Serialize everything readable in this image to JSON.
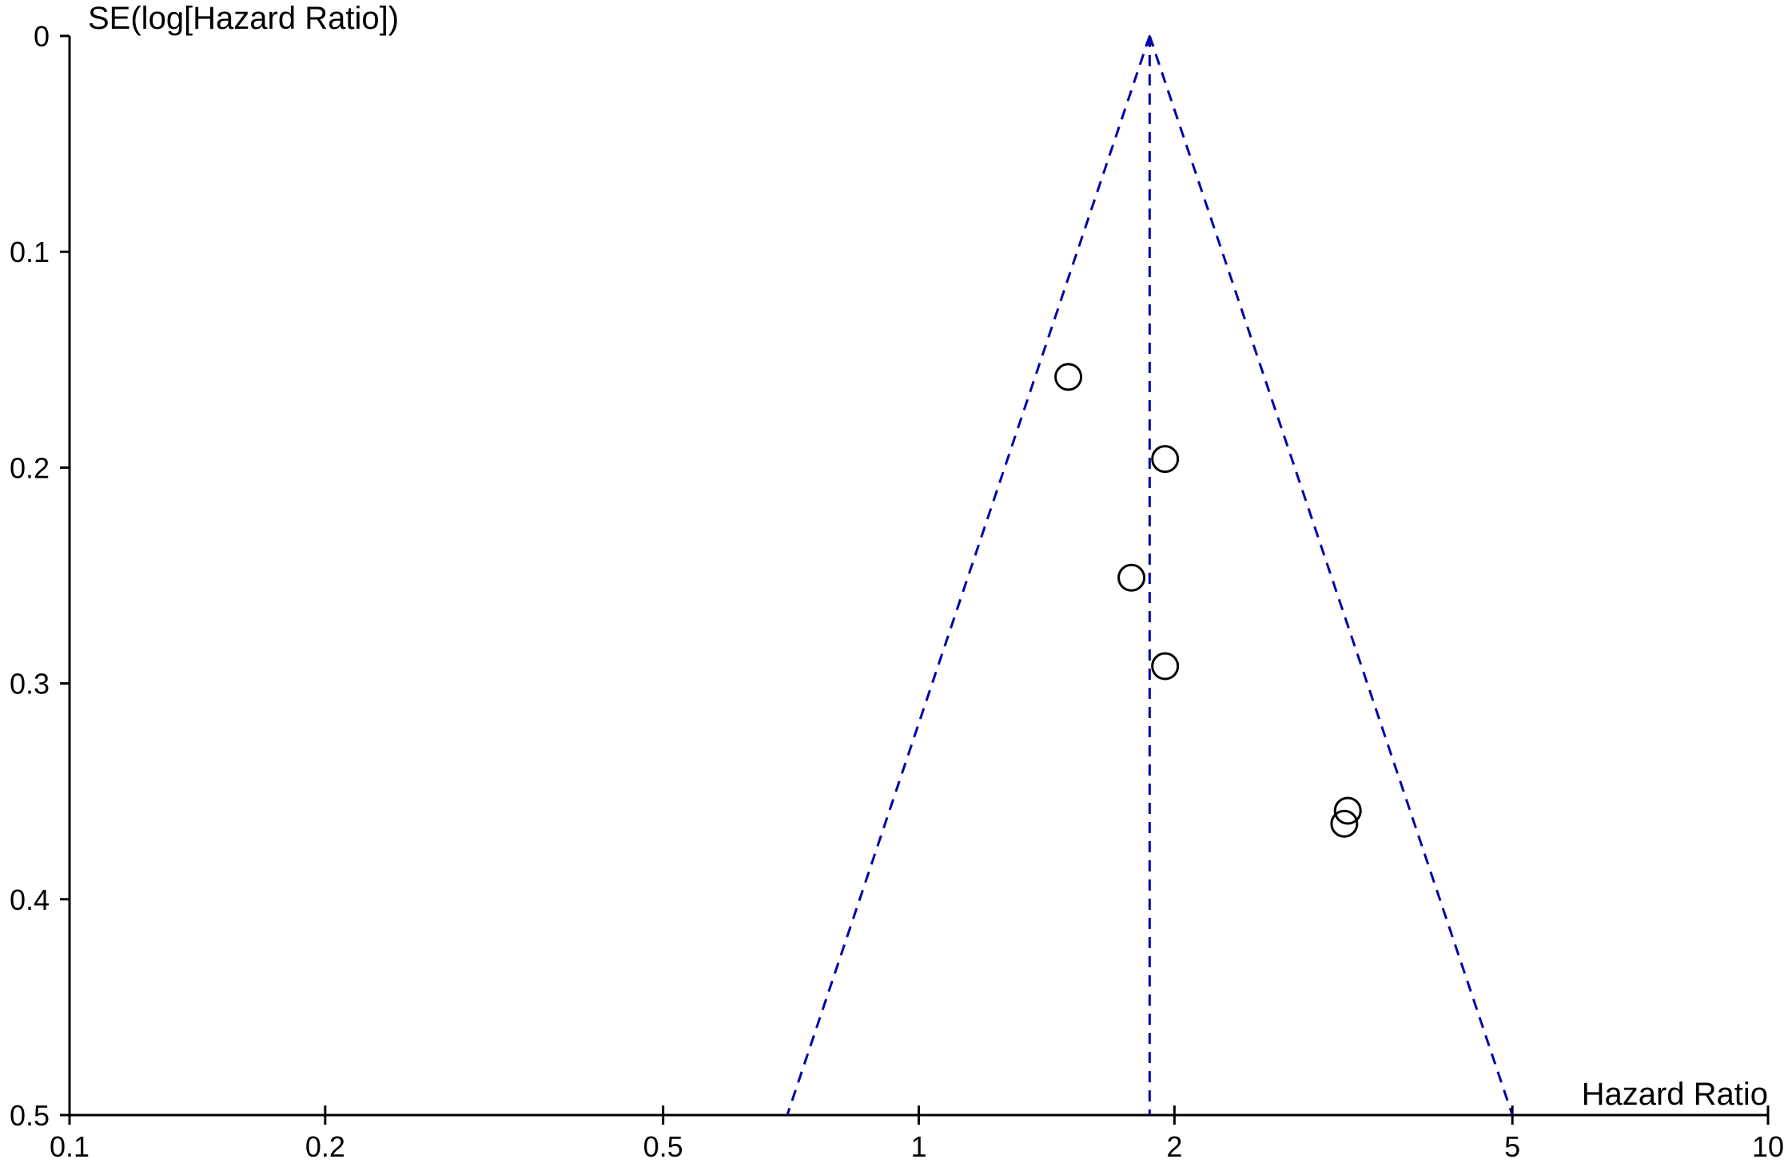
{
  "chart_data": {
    "type": "scatter",
    "title": "",
    "xlabel": "Hazard Ratio",
    "ylabel": "SE(log[Hazard Ratio])",
    "x_scale": "log",
    "xlim": [
      0.1,
      10
    ],
    "ylim": [
      0,
      0.5
    ],
    "y_inverted": true,
    "x_ticks": [
      0.1,
      0.2,
      0.5,
      1,
      2,
      5,
      10
    ],
    "x_tick_labels": [
      "0.1",
      "0.2",
      "0.5",
      "1",
      "2",
      "5",
      "10"
    ],
    "y_ticks": [
      0,
      0.1,
      0.2,
      0.3,
      0.4,
      0.5
    ],
    "y_tick_labels": [
      "0",
      "0.1",
      "0.2",
      "0.3",
      "0.4",
      "0.5"
    ],
    "grid": false,
    "points": [
      {
        "x": 1.5,
        "y": 0.158
      },
      {
        "x": 1.95,
        "y": 0.196
      },
      {
        "x": 1.78,
        "y": 0.251
      },
      {
        "x": 1.95,
        "y": 0.292
      },
      {
        "x": 3.2,
        "y": 0.359
      },
      {
        "x": 3.17,
        "y": 0.365
      }
    ],
    "pooled_estimate": 1.87,
    "funnel_bottom": {
      "se": 0.5,
      "left_x": 0.7,
      "right_x": 5.0
    },
    "colors": {
      "points": "#000000",
      "funnel": "#0000aa",
      "axes": "#000000"
    }
  }
}
